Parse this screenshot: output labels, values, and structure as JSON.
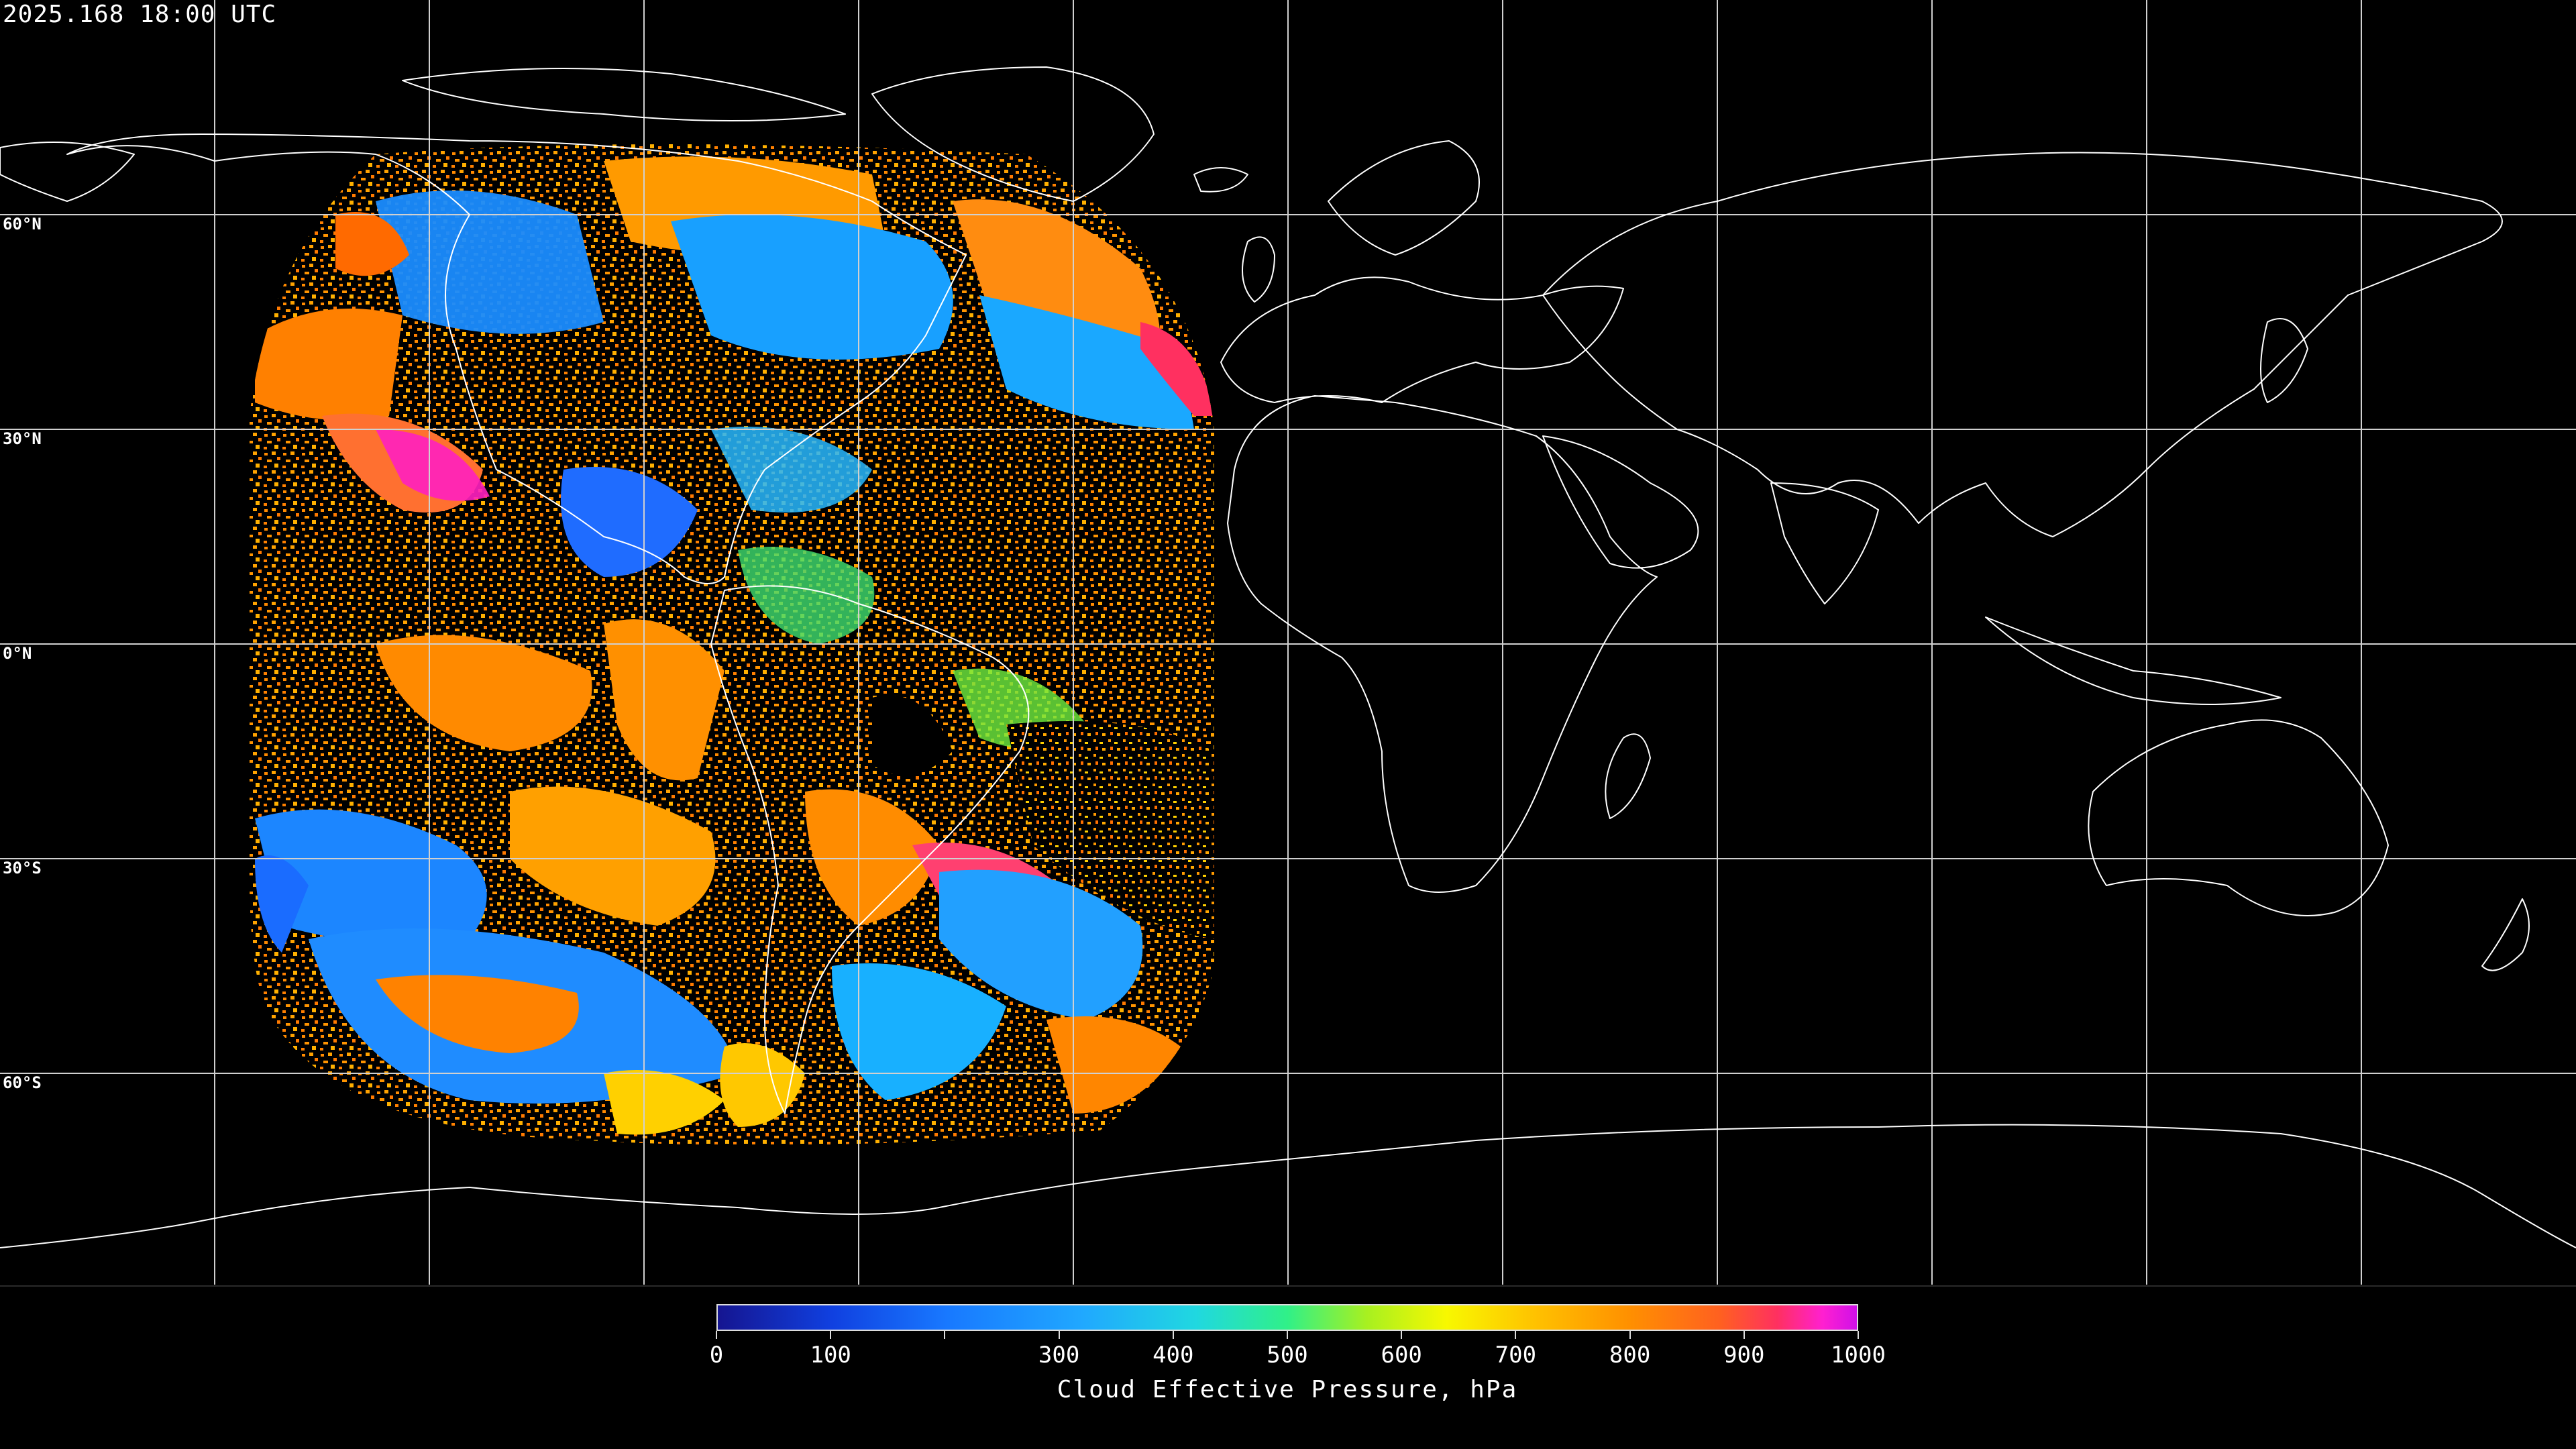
{
  "header": {
    "timestamp": "2025.168 18:00 UTC"
  },
  "map": {
    "projection": "equirectangular",
    "graticule_interval_deg": 30,
    "lat_labels": [
      "60°N",
      "30°N",
      "0°N",
      "30°S",
      "60°S"
    ],
    "data_disk": "GOES-East full disk, cloud effective pressure"
  },
  "colorbar": {
    "title": "Cloud Effective Pressure, hPa",
    "min": 0,
    "max": 1000,
    "tick_labels": [
      "0",
      "100",
      "300",
      "400",
      "500",
      "600",
      "700",
      "800",
      "900",
      "1000"
    ],
    "tick_values": [
      0,
      100,
      300,
      400,
      500,
      600,
      700,
      800,
      900,
      1000
    ],
    "colors": [
      "#151590",
      "#1040e0",
      "#1878ff",
      "#20a8ff",
      "#20d8e0",
      "#30f088",
      "#a8f020",
      "#f8f800",
      "#ffc000",
      "#ff9000",
      "#ff6020",
      "#ff3060",
      "#ff20d0",
      "#d010e8"
    ]
  }
}
